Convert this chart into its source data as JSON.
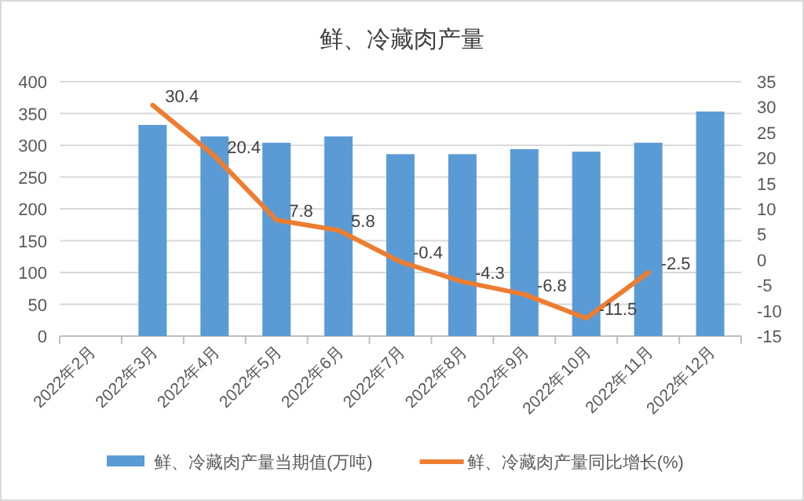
{
  "chart_data": {
    "type": "bar",
    "title": "鲜、冷藏肉产量",
    "categories": [
      "2022年2月",
      "2022年3月",
      "2022年4月",
      "2022年5月",
      "2022年6月",
      "2022年7月",
      "2022年8月",
      "2022年9月",
      "2022年10月",
      "2022年11月",
      "2022年12月"
    ],
    "series": [
      {
        "name": "鲜、冷藏肉产量当期值(万吨)",
        "color": "#5b9bd5",
        "values": [
          null,
          332,
          314,
          304,
          314,
          286,
          286,
          294,
          290,
          304,
          353
        ]
      },
      {
        "name": "鲜、冷藏肉产量同比增长(%)",
        "type": "line",
        "axis": "y2",
        "color": "#ed7d31",
        "values": [
          null,
          30.4,
          20.4,
          7.8,
          5.8,
          -0.4,
          -4.3,
          -6.8,
          -11.5,
          -2.5,
          null
        ],
        "value_labels": [
          null,
          "30.4",
          "20.4",
          "7.8",
          "5.8",
          "-0.4",
          "-4.3",
          "-6.8",
          "-11.5",
          "-2.5",
          null
        ]
      }
    ],
    "ylim": [
      0,
      400
    ],
    "yticks": [
      0,
      50,
      100,
      150,
      200,
      250,
      300,
      350,
      400
    ],
    "y2lim": [
      -15,
      35
    ],
    "y2ticks": [
      -15,
      -10,
      -5,
      0,
      5,
      10,
      15,
      20,
      25,
      30,
      35
    ],
    "grid": "y",
    "legend": "bottom"
  }
}
